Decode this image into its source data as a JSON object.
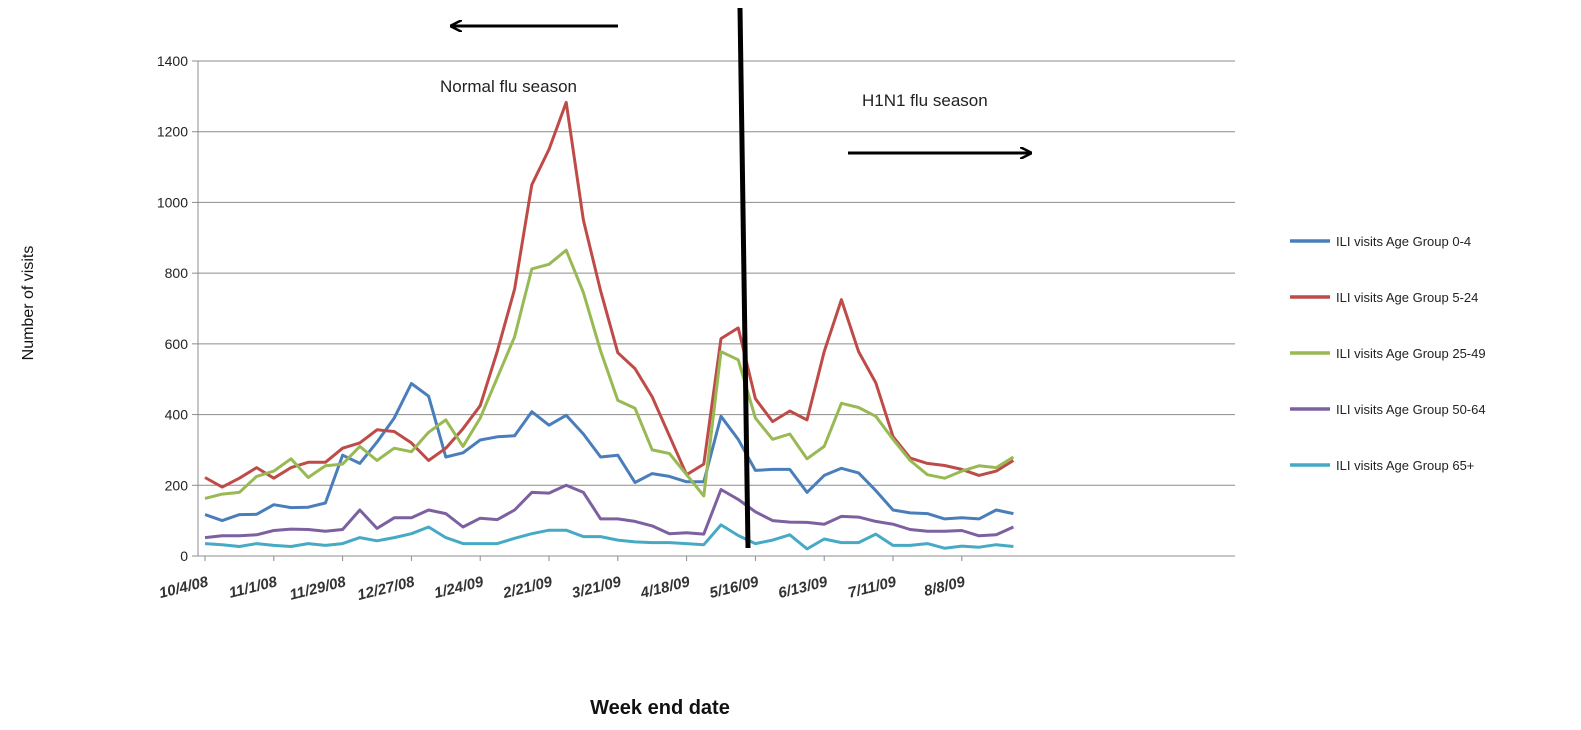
{
  "chart_data": {
    "type": "line",
    "xlabel": "Week end date",
    "ylabel": "Number of visits",
    "ylim": [
      0,
      1400
    ],
    "yticks": [
      0,
      200,
      400,
      600,
      800,
      1000,
      1200,
      1400
    ],
    "grid": "horizontal",
    "legend_position": "right",
    "x_start": "10/4/08",
    "x_step_days": 7,
    "x_tick_labels": [
      "10/4/08",
      "11/1/08",
      "11/29/08",
      "12/27/08",
      "1/24/09",
      "2/21/09",
      "3/21/09",
      "4/18/09",
      "5/16/09",
      "6/13/09",
      "7/11/09",
      "8/8/09"
    ],
    "annotations": {
      "normal_season": "Normal flu  season",
      "h1n1_season": "H1N1  flu season"
    },
    "series": [
      {
        "name": "ILI visits Age  Group 0-4",
        "color": "#4a7ebb",
        "values": [
          117,
          100,
          117,
          118,
          145,
          137,
          138,
          150,
          285,
          262,
          322,
          390,
          488,
          452,
          280,
          292,
          328,
          337,
          340,
          408,
          370,
          398,
          345,
          280,
          285,
          208,
          233,
          225,
          210,
          210,
          395,
          330,
          242,
          245,
          245,
          180,
          228,
          248,
          235,
          185,
          130,
          122,
          120,
          105,
          108,
          105,
          130,
          120
        ]
      },
      {
        "name": "ILI visits Age Group 5-24",
        "color": "#be4b48",
        "values": [
          222,
          195,
          220,
          250,
          220,
          250,
          265,
          265,
          305,
          320,
          357,
          352,
          320,
          270,
          305,
          360,
          425,
          580,
          755,
          1050,
          1150,
          1283,
          950,
          750,
          575,
          530,
          450,
          340,
          230,
          260,
          615,
          645,
          445,
          380,
          410,
          385,
          578,
          725,
          578,
          490,
          338,
          277,
          262,
          256,
          245,
          228,
          240,
          270
        ]
      },
      {
        "name": "ILI visits Age Group 25-49",
        "color": "#98b954",
        "values": [
          163,
          175,
          180,
          225,
          240,
          275,
          222,
          255,
          260,
          310,
          270,
          305,
          295,
          350,
          385,
          310,
          390,
          505,
          620,
          812,
          825,
          865,
          745,
          580,
          440,
          418,
          300,
          290,
          230,
          170,
          578,
          555,
          390,
          330,
          345,
          275,
          310,
          432,
          420,
          395,
          330,
          270,
          230,
          220,
          240,
          255,
          250,
          280
        ]
      },
      {
        "name": "ILI visits Age Group 50-64",
        "color": "#7d60a0",
        "values": [
          52,
          57,
          57,
          60,
          72,
          76,
          75,
          70,
          75,
          130,
          78,
          108,
          108,
          130,
          120,
          82,
          107,
          103,
          130,
          180,
          178,
          200,
          180,
          105,
          105,
          98,
          85,
          63,
          66,
          62,
          188,
          160,
          125,
          100,
          96,
          95,
          90,
          112,
          110,
          98,
          90,
          75,
          70,
          70,
          72,
          57,
          60,
          82
        ]
      },
      {
        "name": "ILI visits Age Group 65+",
        "color": "#46aac5",
        "values": [
          35,
          32,
          27,
          35,
          30,
          27,
          35,
          30,
          35,
          52,
          43,
          52,
          63,
          82,
          52,
          35,
          35,
          35,
          50,
          63,
          73,
          73,
          55,
          55,
          45,
          40,
          38,
          38,
          35,
          32,
          88,
          58,
          35,
          45,
          60,
          20,
          48,
          38,
          38,
          62,
          30,
          30,
          35,
          22,
          28,
          25,
          32,
          27
        ]
      }
    ]
  }
}
